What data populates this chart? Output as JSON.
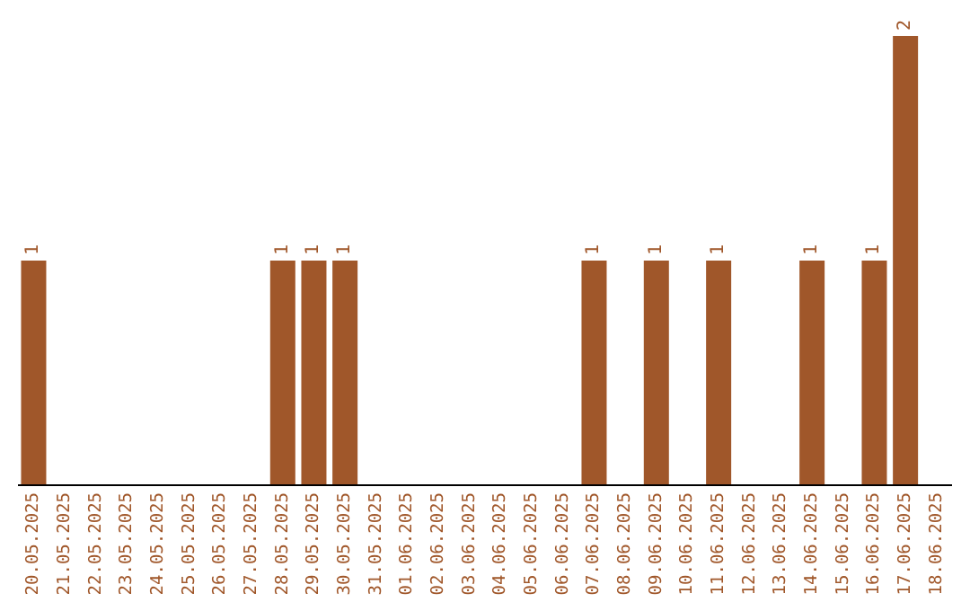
{
  "chart_data": {
    "type": "bar",
    "categories": [
      "20.05.2025",
      "21.05.2025",
      "22.05.2025",
      "23.05.2025",
      "24.05.2025",
      "25.05.2025",
      "26.05.2025",
      "27.05.2025",
      "28.05.2025",
      "29.05.2025",
      "30.05.2025",
      "31.05.2025",
      "01.06.2025",
      "02.06.2025",
      "03.06.2025",
      "04.06.2025",
      "05.06.2025",
      "06.06.2025",
      "07.06.2025",
      "08.06.2025",
      "09.06.2025",
      "10.06.2025",
      "11.06.2025",
      "12.06.2025",
      "13.06.2025",
      "14.06.2025",
      "15.06.2025",
      "16.06.2025",
      "17.06.2025",
      "18.06.2025"
    ],
    "values": [
      1,
      0,
      0,
      0,
      0,
      0,
      0,
      0,
      1,
      1,
      1,
      0,
      0,
      0,
      0,
      0,
      0,
      0,
      1,
      0,
      1,
      0,
      1,
      0,
      0,
      1,
      0,
      1,
      2,
      0
    ],
    "value_labels": [
      "1",
      null,
      null,
      null,
      null,
      null,
      null,
      null,
      "1",
      "1",
      "1",
      null,
      null,
      null,
      null,
      null,
      null,
      null,
      "1",
      null,
      "1",
      null,
      "1",
      null,
      null,
      "1",
      null,
      "1",
      "2",
      null
    ],
    "color": "#a0572a"
  }
}
